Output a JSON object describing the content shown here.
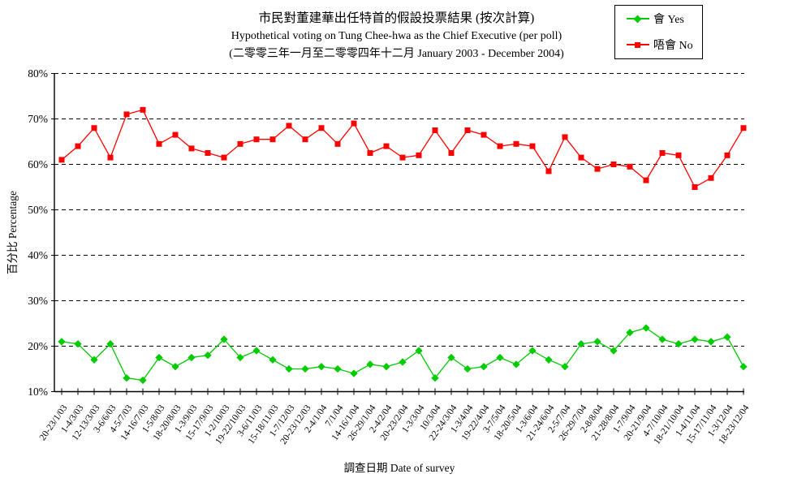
{
  "chart_data": {
    "type": "line",
    "title_lines": [
      "市民對董建華出任特首的假設投票結果 (按次計算)",
      "Hypothetical voting on Tung Chee-hwa as the Chief Executive (per poll)",
      "(二零零三年一月至二零零四年十二月 January 2003 - December 2004)"
    ],
    "xlabel": "調查日期 Date of survey",
    "ylabel": "百分比 Percentage",
    "ylim": [
      10,
      80
    ],
    "y_tick_step": 10,
    "y_tick_labels": [
      "10%",
      "20%",
      "30%",
      "40%",
      "50%",
      "60%",
      "70%",
      "80%"
    ],
    "grid": "horizontal-dashed",
    "legend_position": "top-right",
    "x_tick_rotation_deg": -55,
    "categories": [
      "20-23/1/03",
      "1-4/3/03",
      "12-13/3/03",
      "3-6/6/03",
      "4-5/7/03",
      "14-16/7/03",
      "1-5/8/03",
      "18-20/8/03",
      "1-3/9/03",
      "15-17/9/03",
      "1-2/10/03",
      "19-22/10/03",
      "3-6/11/03",
      "15-18/11/03",
      "1-7/12/03",
      "20-23/12/03",
      "2-4/1/04",
      "7/1/04",
      "14-16/1/04",
      "26-29/1/04",
      "2-4/2/04",
      "20-23/2/04",
      "1-3/3/04",
      "10/3/04",
      "22-24/3/04",
      "1-3/4/04",
      "19-22/4/04",
      "3-7/5/04",
      "18-20/5/04",
      "1-3/6/04",
      "21-24/6/04",
      "2-5/7/04",
      "26-29/7/04",
      "2-8/8/04",
      "21-28/8/04",
      "1-7/9/04",
      "20-21/9/04",
      "4-7/10/04",
      "18-21/10/04",
      "1-4/11/04",
      "15-17/11/04",
      "1-3/12/04",
      "18-23/12/04"
    ],
    "series": [
      {
        "name": "會 Yes",
        "color": "#00cc00",
        "marker": "diamond",
        "values": [
          21,
          20.5,
          17,
          20.5,
          13,
          12.5,
          17.5,
          15.5,
          17.5,
          18,
          21.5,
          17.5,
          19,
          17,
          15,
          15,
          15.5,
          15,
          14,
          16,
          15.5,
          16.5,
          19,
          13,
          17.5,
          15,
          15.5,
          17.5,
          16,
          19,
          17,
          15.5,
          20.5,
          21,
          19,
          23,
          24,
          21.5,
          20.5,
          21.5,
          21,
          22,
          15.5
        ]
      },
      {
        "name": "唔會 No",
        "color": "#ff0000",
        "marker": "square",
        "values": [
          61,
          64,
          68,
          61.5,
          71,
          72,
          64.5,
          66.5,
          63.5,
          62.5,
          61.5,
          64.5,
          65.5,
          65.5,
          68.5,
          65.5,
          68,
          64.5,
          69,
          62.5,
          64,
          61.5,
          62,
          67.5,
          62.5,
          67.5,
          66.5,
          64,
          64.5,
          64,
          58.5,
          66,
          61.5,
          59,
          60,
          59.5,
          56.5,
          62.5,
          62,
          55,
          57,
          62,
          68
        ]
      }
    ]
  }
}
